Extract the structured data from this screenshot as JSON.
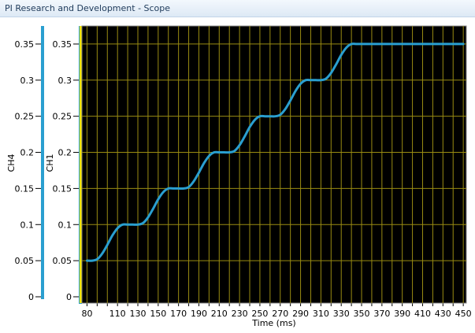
{
  "window": {
    "title": "PI Research and Development - Scope"
  },
  "colors": {
    "plot_background": "#000000",
    "grid": "#9a8c12",
    "trace_ch1": "#2a9fd0",
    "ch4_axis_bar": "#2a9fd0",
    "ch1_axis_bar": "#2a9fd0",
    "x_axis_bar": "#f2e600"
  },
  "chart_data": {
    "type": "line",
    "xlabel": "Time (ms)",
    "left_axes": [
      {
        "label": "CH4",
        "ylim": [
          0,
          0.375
        ],
        "tick_labels": [
          "0",
          "0.05",
          "0.1",
          "0.15",
          "0.2",
          "0.25",
          "0.3",
          "0.35"
        ]
      },
      {
        "label": "CH1",
        "ylim": [
          0,
          0.375
        ],
        "tick_labels": [
          "0",
          "0.05",
          "0.1",
          "0.15",
          "0.2",
          "0.25",
          "0.3",
          "0.35"
        ]
      }
    ],
    "yticks": [
      0,
      0.05,
      0.1,
      0.15,
      0.2,
      0.25,
      0.3,
      0.35
    ],
    "xlim": [
      75,
      453
    ],
    "xtick_labels": [
      "80",
      "110",
      "130",
      "150",
      "170",
      "190",
      "210",
      "230",
      "250",
      "270",
      "290",
      "310",
      "330",
      "350",
      "370",
      "390",
      "410",
      "430",
      "450"
    ],
    "xgrid_start": 80,
    "xgrid_step": 10,
    "xgrid_end": 450,
    "grid": true,
    "series": [
      {
        "name": "CH1",
        "x": [
          80,
          85,
          90,
          95,
          100,
          105,
          110,
          115,
          120,
          125,
          130,
          135,
          140,
          145,
          150,
          155,
          160,
          165,
          170,
          175,
          180,
          185,
          190,
          195,
          200,
          205,
          210,
          215,
          220,
          225,
          230,
          235,
          240,
          245,
          250,
          255,
          260,
          265,
          270,
          275,
          280,
          285,
          290,
          295,
          300,
          305,
          310,
          315,
          320,
          325,
          330,
          335,
          340,
          345,
          350,
          355,
          360,
          365,
          370,
          375,
          380,
          385,
          390,
          395,
          400,
          405,
          410,
          415,
          420,
          425,
          430,
          435,
          440,
          445,
          450
        ],
        "y": [
          0.05,
          0.05,
          0.052,
          0.06,
          0.072,
          0.085,
          0.095,
          0.1,
          0.1,
          0.1,
          0.1,
          0.102,
          0.11,
          0.122,
          0.135,
          0.145,
          0.15,
          0.15,
          0.15,
          0.15,
          0.152,
          0.16,
          0.172,
          0.185,
          0.195,
          0.2,
          0.2,
          0.2,
          0.2,
          0.202,
          0.21,
          0.222,
          0.235,
          0.245,
          0.25,
          0.25,
          0.25,
          0.25,
          0.252,
          0.26,
          0.272,
          0.285,
          0.295,
          0.3,
          0.3,
          0.3,
          0.3,
          0.302,
          0.31,
          0.322,
          0.335,
          0.345,
          0.35,
          0.35,
          0.35,
          0.35,
          0.35,
          0.35,
          0.35,
          0.35,
          0.35,
          0.35,
          0.35,
          0.35,
          0.35,
          0.35,
          0.35,
          0.35,
          0.35,
          0.35,
          0.35,
          0.35,
          0.35,
          0.35,
          0.35
        ]
      }
    ]
  }
}
